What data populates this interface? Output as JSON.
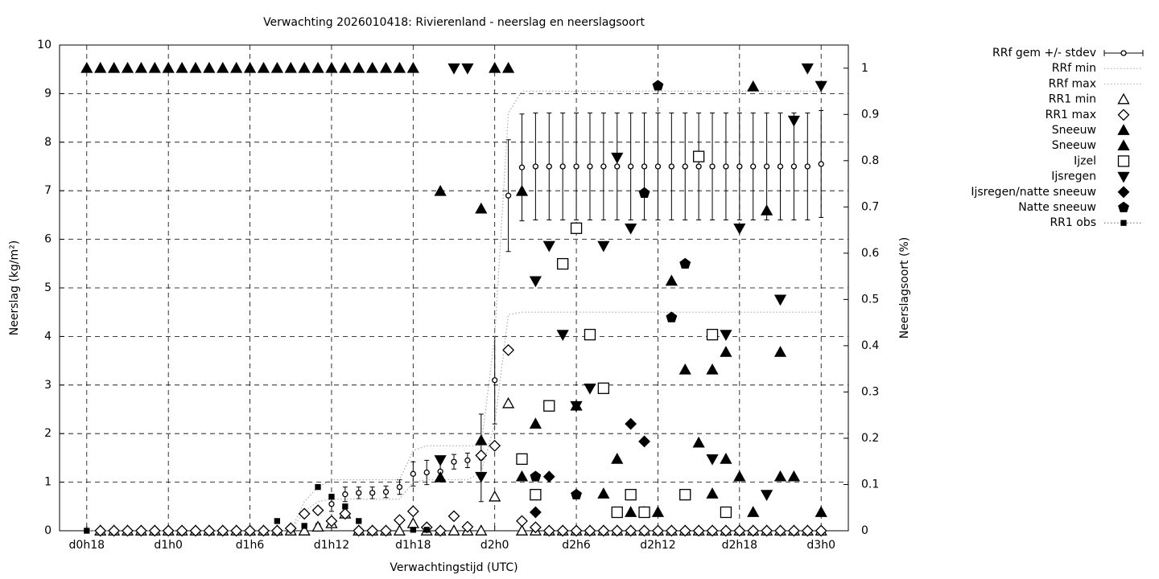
{
  "chart_data": {
    "type": "scatter",
    "title": "Verwachting 2026010418: Rivierenland - neerslag en neerslagsoort",
    "x_label": "Verwachtingstijd (UTC)",
    "y_label": "Neerslag (kg/m²)",
    "y2_label": "Neerslagsoort (%)",
    "x": [
      18,
      19,
      20,
      21,
      22,
      23,
      24,
      25,
      26,
      27,
      28,
      29,
      30,
      31,
      32,
      33,
      34,
      35,
      36,
      37,
      38,
      39,
      40,
      41,
      42,
      43,
      44,
      45,
      46,
      47,
      48,
      49,
      50,
      51,
      52,
      53,
      54,
      55,
      56,
      57,
      58,
      59,
      60,
      61,
      62,
      63,
      64,
      65,
      66,
      67,
      68,
      69,
      70,
      71,
      72
    ],
    "xlim": [
      16,
      74
    ],
    "xticks": [
      {
        "value": 18,
        "label": "d0h18"
      },
      {
        "value": 24,
        "label": "d1h0"
      },
      {
        "value": 30,
        "label": "d1h6"
      },
      {
        "value": 36,
        "label": "d1h12"
      },
      {
        "value": 42,
        "label": "d1h18"
      },
      {
        "value": 48,
        "label": "d2h0"
      },
      {
        "value": 54,
        "label": "d2h6"
      },
      {
        "value": 60,
        "label": "d2h12"
      },
      {
        "value": 66,
        "label": "d2h18"
      },
      {
        "value": 72,
        "label": "d3h0"
      }
    ],
    "ylim": [
      0,
      10
    ],
    "yticks": [
      0,
      1,
      2,
      3,
      4,
      5,
      6,
      7,
      8,
      9,
      10
    ],
    "y2lim": [
      0,
      1.05
    ],
    "y2ticks": [
      0,
      0.1,
      0.2,
      0.3,
      0.4,
      0.5,
      0.6,
      0.7,
      0.8,
      0.9,
      1
    ],
    "grid": true,
    "legend": "top-right",
    "series": [
      {
        "name": "RRf gem +/- stdev",
        "kind": "errorbar",
        "marker": "circle-open",
        "color": "#000000",
        "values": [
          null,
          0,
          0,
          0,
          0,
          0,
          0,
          0,
          0,
          0,
          0,
          0,
          0,
          0,
          0,
          0,
          0,
          0.1,
          0.55,
          0.75,
          0.78,
          0.78,
          0.8,
          0.9,
          1.17,
          1.2,
          1.22,
          1.42,
          1.45,
          1.5,
          3.1,
          6.9,
          7.48,
          7.5,
          7.5,
          7.5,
          7.5,
          7.5,
          7.5,
          7.5,
          7.5,
          7.5,
          7.5,
          7.5,
          7.5,
          7.5,
          7.5,
          7.5,
          7.5,
          7.5,
          7.5,
          7.5,
          7.5,
          7.5,
          7.55
        ],
        "errors": [
          null,
          0,
          0,
          0,
          0,
          0,
          0,
          0,
          0,
          0,
          0,
          0,
          0,
          0,
          0,
          0,
          0,
          0.05,
          0.15,
          0.15,
          0.12,
          0.12,
          0.12,
          0.15,
          0.25,
          0.25,
          0.2,
          0.15,
          0.15,
          0.9,
          0.9,
          1.15,
          1.1,
          1.1,
          1.1,
          1.1,
          1.1,
          1.1,
          1.1,
          1.1,
          1.1,
          1.1,
          1.1,
          1.1,
          1.1,
          1.1,
          1.1,
          1.1,
          1.1,
          1.1,
          1.1,
          1.1,
          1.1,
          1.1,
          1.1
        ]
      },
      {
        "name": "RRf min",
        "kind": "line",
        "style": "dotted",
        "color": "#aaaaaa",
        "values": [
          0,
          0,
          0,
          0,
          0,
          0,
          0,
          0,
          0,
          0,
          0,
          0,
          0,
          0,
          0,
          0,
          0.4,
          0.6,
          0.65,
          0.65,
          0.65,
          0.65,
          0.65,
          0.65,
          1,
          1.05,
          1.05,
          1.05,
          1.05,
          1.2,
          2.2,
          4.45,
          4.5,
          4.5,
          4.5,
          4.5,
          4.5,
          4.5,
          4.5,
          4.5,
          4.5,
          4.5,
          4.5,
          4.5,
          4.5,
          4.5,
          4.5,
          4.5,
          4.5,
          4.5,
          4.5,
          4.5,
          4.5,
          4.5,
          4.5
        ]
      },
      {
        "name": "RRf max",
        "kind": "line",
        "style": "dotted",
        "color": "#aaaaaa",
        "values": [
          0,
          0,
          0,
          0,
          0,
          0,
          0,
          0,
          0,
          0,
          0,
          0,
          0,
          0,
          0,
          0,
          0.6,
          0.9,
          1.05,
          1.05,
          1.05,
          1.05,
          1.05,
          1.05,
          1.65,
          1.75,
          1.75,
          1.75,
          1.75,
          1.75,
          4,
          8.6,
          9.05,
          9.05,
          9.05,
          9.05,
          9.05,
          9.05,
          9.05,
          9.05,
          9.05,
          9.05,
          9.05,
          9.05,
          9.05,
          9.05,
          9.05,
          9.05,
          9.05,
          9.05,
          9.05,
          9.05,
          9.05,
          9.05,
          9.05
        ]
      },
      {
        "name": "RR1 min",
        "kind": "points",
        "marker": "triangle-open",
        "color": "#000000",
        "values": [
          null,
          0,
          0,
          0,
          0,
          0,
          0,
          0,
          0,
          0,
          0,
          0,
          0,
          0,
          0,
          0,
          0,
          0.08,
          0.15,
          0.35,
          0,
          0,
          0,
          0,
          0.15,
          0,
          0,
          0,
          0,
          0,
          0.7,
          2.62,
          0,
          0,
          0,
          0,
          0,
          0,
          0,
          0,
          0,
          0,
          0,
          0,
          0,
          0,
          0,
          0,
          0,
          0,
          0,
          0,
          0,
          0,
          0
        ]
      },
      {
        "name": "RR1 max",
        "kind": "points",
        "marker": "diamond-open",
        "color": "#000000",
        "values": [
          null,
          0,
          0,
          0,
          0,
          0,
          0,
          0,
          0,
          0,
          0,
          0,
          0,
          0,
          0,
          0.05,
          0.35,
          0.42,
          0.2,
          0.35,
          0,
          0,
          0,
          0.22,
          0.4,
          0.07,
          0,
          0.3,
          0.08,
          1.55,
          1.75,
          3.72,
          0.2,
          0.07,
          0,
          0,
          0,
          0,
          0,
          0,
          0,
          0,
          0,
          0,
          0,
          0,
          0,
          0,
          0,
          0,
          0,
          0,
          0,
          0,
          0
        ]
      },
      {
        "name": "Sneeuw",
        "kind": "points",
        "marker": "triangle-filled",
        "color": "#000000",
        "axis": "y2",
        "values": [
          1,
          1,
          1,
          1,
          1,
          1,
          1,
          1,
          1,
          1,
          1,
          1,
          1,
          1,
          1,
          1,
          1,
          1,
          1,
          1,
          1,
          1,
          1,
          1,
          1,
          null,
          0.734,
          null,
          null,
          0.696,
          1,
          1,
          0.734,
          0.231,
          null,
          null,
          0.27,
          null,
          0.08,
          0.155,
          0.04,
          0.04,
          0.04,
          0.54,
          0.348,
          0.19,
          0.348,
          0.386,
          0.117,
          0.96,
          0.692,
          0.386,
          0.117,
          null,
          0.04
        ]
      },
      {
        "name": "Sneeuw",
        "kind": "points",
        "marker": "triangle-filled",
        "color": "#000000",
        "axis": "y2",
        "values": [
          null,
          null,
          null,
          null,
          null,
          null,
          null,
          null,
          null,
          null,
          null,
          null,
          null,
          null,
          null,
          null,
          null,
          null,
          null,
          null,
          null,
          null,
          null,
          null,
          null,
          null,
          0.115,
          null,
          null,
          0.195,
          null,
          null,
          0.117,
          null,
          null,
          null,
          null,
          null,
          null,
          null,
          null,
          null,
          null,
          null,
          null,
          null,
          0.08,
          0.155,
          null,
          0.04,
          null,
          0.117,
          null,
          null,
          null
        ]
      },
      {
        "name": "Ijzel",
        "kind": "points",
        "marker": "square-open",
        "color": "#000000",
        "axis": "y2",
        "values": [
          null,
          null,
          null,
          null,
          null,
          null,
          null,
          null,
          null,
          null,
          null,
          null,
          null,
          null,
          null,
          null,
          null,
          null,
          null,
          null,
          null,
          null,
          null,
          null,
          null,
          null,
          null,
          null,
          null,
          null,
          null,
          null,
          0.155,
          0.078,
          0.27,
          0.577,
          0.654,
          0.424,
          0.308,
          0.04,
          0.078,
          0.04,
          null,
          null,
          0.078,
          0.809,
          0.424,
          0.04,
          null,
          null,
          null,
          null,
          null,
          null,
          null
        ]
      },
      {
        "name": "Ijsregen",
        "kind": "points",
        "marker": "triangle-down-filled",
        "color": "#000000",
        "axis": "y2",
        "values": [
          null,
          null,
          null,
          null,
          null,
          null,
          null,
          null,
          null,
          null,
          null,
          null,
          null,
          null,
          null,
          null,
          null,
          null,
          null,
          null,
          null,
          null,
          null,
          null,
          null,
          null,
          0.153,
          1,
          1,
          0.117,
          null,
          null,
          null,
          0.54,
          0.616,
          0.424,
          0.27,
          0.308,
          0.616,
          0.807,
          0.654,
          null,
          null,
          null,
          null,
          null,
          0.155,
          0.424,
          0.654,
          null,
          0.078,
          0.5,
          0.887,
          1,
          0.962
        ]
      },
      {
        "name": "Ijsregen/natte sneeuw",
        "kind": "points",
        "marker": "diamond-filled",
        "color": "#000000",
        "axis": "y2",
        "values": [
          null,
          null,
          null,
          null,
          null,
          null,
          null,
          null,
          null,
          null,
          null,
          null,
          null,
          null,
          null,
          null,
          null,
          null,
          null,
          null,
          null,
          null,
          null,
          null,
          null,
          null,
          null,
          null,
          null,
          null,
          null,
          null,
          null,
          0.04,
          0.117,
          null,
          null,
          null,
          null,
          null,
          0.231,
          0.193,
          null,
          null,
          null,
          null,
          null,
          null,
          null,
          null,
          null,
          null,
          null,
          null,
          null
        ]
      },
      {
        "name": "Natte sneeuw",
        "kind": "points",
        "marker": "pentagon-filled",
        "color": "#000000",
        "axis": "y2",
        "values": [
          null,
          null,
          null,
          null,
          null,
          null,
          null,
          null,
          null,
          null,
          null,
          null,
          null,
          null,
          null,
          null,
          null,
          null,
          null,
          null,
          null,
          null,
          null,
          null,
          null,
          null,
          null,
          null,
          null,
          null,
          null,
          null,
          null,
          0.117,
          null,
          null,
          0.078,
          null,
          null,
          null,
          null,
          0.73,
          0.962,
          0.461,
          0.577,
          null,
          null,
          null,
          null,
          null,
          null,
          null,
          null,
          null,
          null
        ]
      },
      {
        "name": "RR1 obs",
        "kind": "points",
        "marker": "square-filled",
        "color": "#000000",
        "values": [
          0,
          null,
          null,
          null,
          null,
          null,
          null,
          null,
          null,
          null,
          null,
          null,
          null,
          null,
          0.2,
          null,
          0.1,
          0.9,
          0.7,
          0.5,
          0.2,
          null,
          null,
          null,
          0.02,
          0.02,
          null,
          null,
          null,
          null,
          null,
          null,
          null,
          null,
          null,
          null,
          null,
          null,
          null,
          null,
          null,
          null,
          null,
          null,
          null,
          null,
          null,
          null,
          null,
          null,
          null,
          null,
          null,
          null,
          null
        ]
      }
    ]
  }
}
